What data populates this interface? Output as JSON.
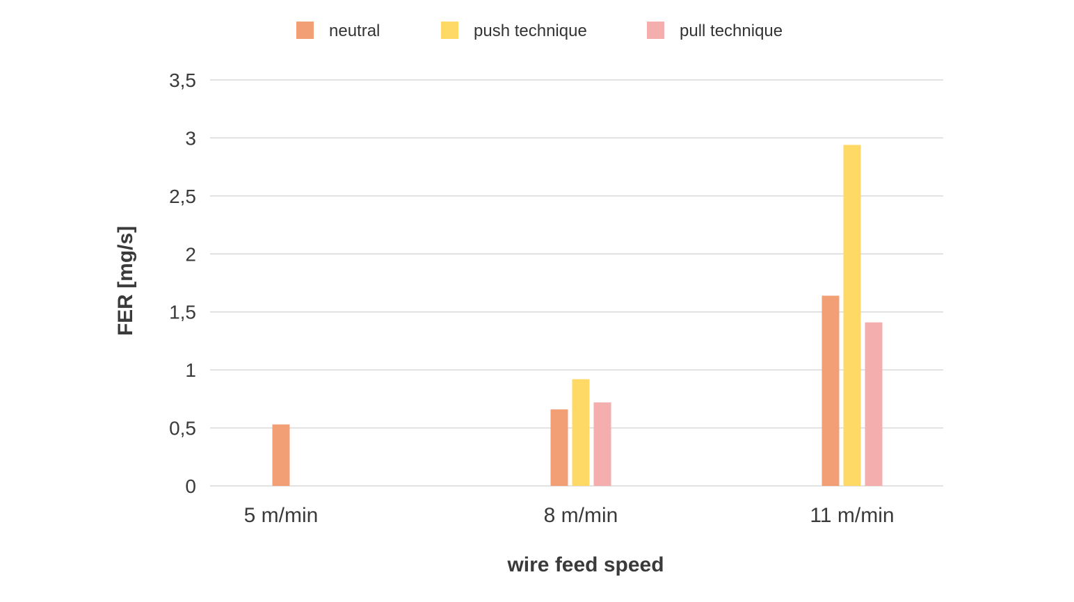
{
  "chart_data": {
    "type": "bar",
    "title": "",
    "xlabel": "wire feed speed",
    "ylabel": "FER [mg/s]",
    "categories": [
      "5 m/min",
      "8 m/min",
      "11 m/min"
    ],
    "series": [
      {
        "name": "neutral",
        "color": "#F29F76",
        "values": [
          0.53,
          0.66,
          1.64
        ]
      },
      {
        "name": "push technique",
        "color": "#FFD966",
        "values": [
          null,
          0.92,
          2.94
        ]
      },
      {
        "name": "pull technique",
        "color": "#F4AEAD",
        "values": [
          null,
          0.72,
          1.41
        ]
      }
    ],
    "ylim": [
      0,
      3.5
    ],
    "yticks": [
      {
        "value": 0,
        "label": "0"
      },
      {
        "value": 0.5,
        "label": "0,5"
      },
      {
        "value": 1,
        "label": "1"
      },
      {
        "value": 1.5,
        "label": "1,5"
      },
      {
        "value": 2,
        "label": "2"
      },
      {
        "value": 2.5,
        "label": "2,5"
      },
      {
        "value": 3,
        "label": "3"
      },
      {
        "value": 3.5,
        "label": "3,5"
      }
    ],
    "grid": true,
    "legend_position": "top-center"
  }
}
